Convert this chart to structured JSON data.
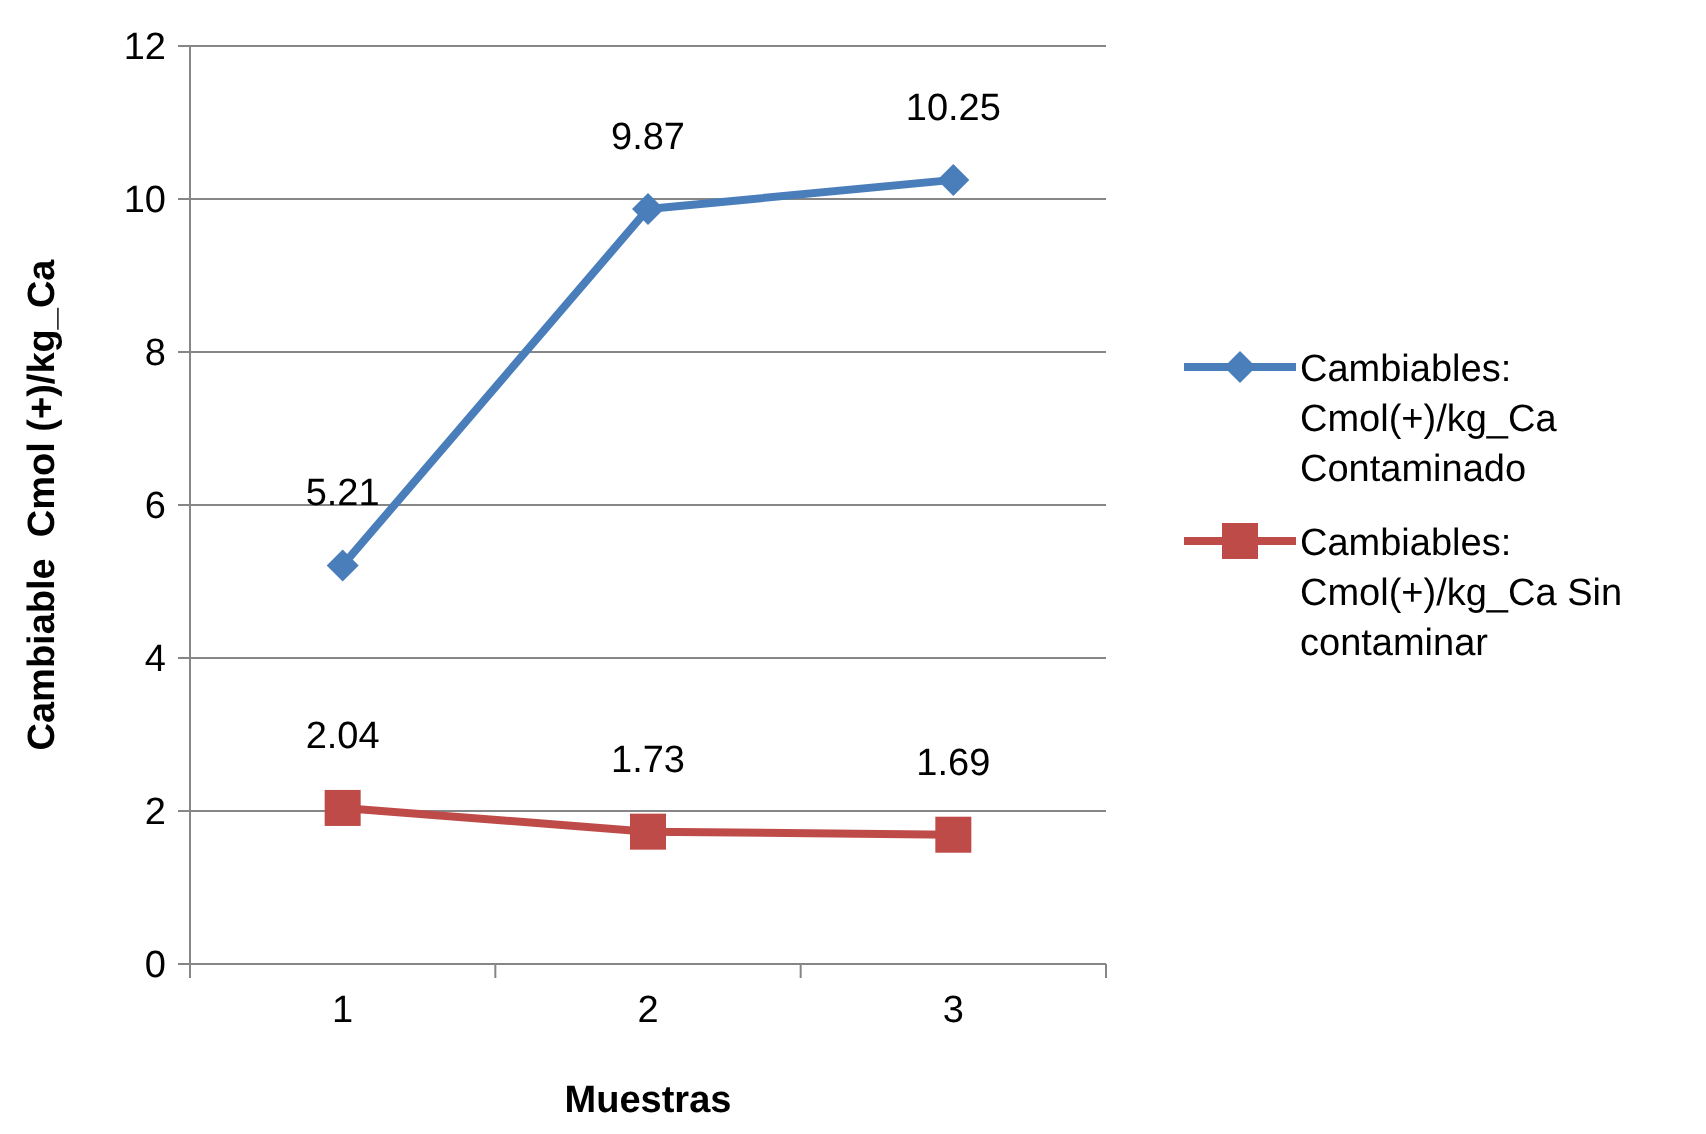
{
  "chart_data": {
    "type": "line",
    "xlabel": "Muestras",
    "ylabel": "Cambiable  Cmol (+)/kg_Ca",
    "categories": [
      "1",
      "2",
      "3"
    ],
    "series": [
      {
        "name": "Cambiables: Cmol(+)/kg_Ca Contaminado",
        "color": "#4a7ebb",
        "values": [
          5.21,
          9.87,
          10.25
        ],
        "marker": "diamond"
      },
      {
        "name": "Cambiables: Cmol(+)/kg_Ca Sin contaminar",
        "color": "#be4b48",
        "values": [
          2.04,
          1.73,
          1.69
        ],
        "marker": "square"
      }
    ],
    "ylim": [
      0,
      12
    ],
    "yticks": [
      0,
      2,
      4,
      6,
      8,
      10,
      12
    ],
    "grid": "y",
    "legend": "right",
    "data_labels": true
  }
}
